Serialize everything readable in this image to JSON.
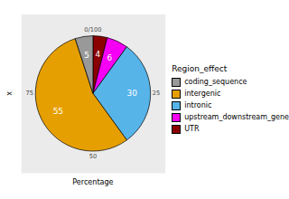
{
  "chart_data": {
    "type": "pie",
    "categories": [
      "coding_sequence",
      "intergenic",
      "intronic",
      "upstream_downstream_gene",
      "UTR"
    ],
    "values": [
      5,
      55,
      30,
      6,
      4
    ],
    "colors": [
      "#999999",
      "#E69F00",
      "#56B4E9",
      "#F500F5",
      "#8B0000"
    ],
    "xlabel": "Percentage",
    "ylabel": "x",
    "legend_title": "Region_effect",
    "xlim": [
      0,
      100
    ],
    "xticks": [
      {
        "value": 0,
        "label": "0/100"
      },
      25,
      50,
      75
    ],
    "data_labels": true,
    "legend": "right"
  }
}
